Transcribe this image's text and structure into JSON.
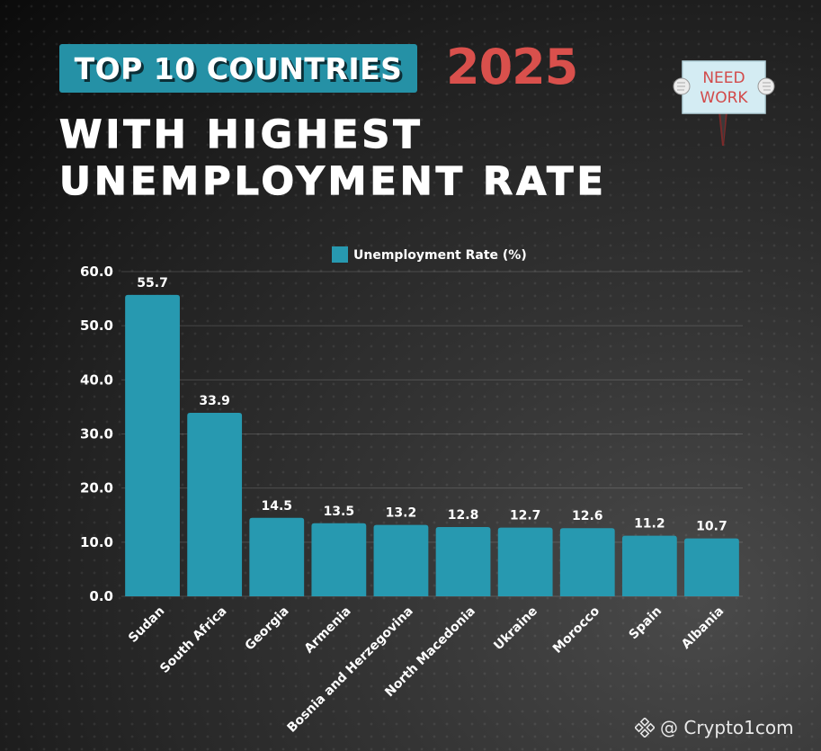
{
  "header": {
    "title": "TOP 10 COUNTRIES",
    "year": "2025",
    "subtitle_line1": "WITH HIGHEST",
    "subtitle_line2": "UNEMPLOYMENT RATE"
  },
  "sign": {
    "line1": "NEED",
    "line2": "WORK"
  },
  "watermark": {
    "icon": "binance-diamond-icon",
    "text": "@ Crypto1com"
  },
  "colors": {
    "bar": "#2799b0",
    "title_bg": "#2591a6",
    "year": "#d9504c",
    "sign_bg": "#d4ecf3",
    "sign_text": "#d24a4a"
  },
  "chart_data": {
    "type": "bar",
    "title": "",
    "legend": "Unemployment Rate (%)",
    "legend_position": "top-center",
    "categories": [
      "Sudan",
      "South Africa",
      "Georgia",
      "Armenia",
      "Bosnia and Herzegovina",
      "North Macedonia",
      "Ukraine",
      "Morocco",
      "Spain",
      "Albania"
    ],
    "values": [
      55.7,
      33.9,
      14.5,
      13.5,
      13.2,
      12.8,
      12.7,
      12.6,
      11.2,
      10.7
    ],
    "value_labels": [
      "55.7",
      "33.9",
      "14.5",
      "13.5",
      "13.2",
      "12.8",
      "12.7",
      "12.6",
      "11.2",
      "10.7"
    ],
    "ylim": [
      0,
      60
    ],
    "yticks": [
      "0.0",
      "10.0",
      "20.0",
      "30.0",
      "40.0",
      "50.0",
      "60.0"
    ],
    "xlabel": "",
    "ylabel": "",
    "grid": true
  }
}
